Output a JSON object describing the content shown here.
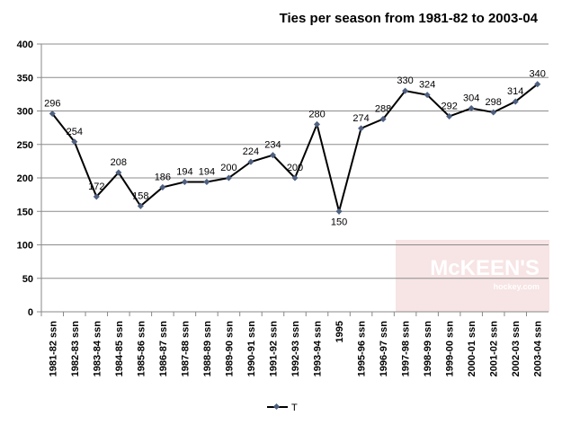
{
  "chart_data": {
    "type": "line",
    "title": "Ties per season from 1981-82 to 2003-04",
    "xlabel": "",
    "ylabel": "",
    "ylim": [
      0,
      400
    ],
    "yticks": [
      0,
      50,
      100,
      150,
      200,
      250,
      300,
      350,
      400
    ],
    "grid": true,
    "legend_position": "bottom",
    "categories": [
      "1981-82 ssn",
      "1982-83 ssn",
      "1983-84 ssn",
      "1984-85 ssn",
      "1985-86 ssn",
      "1986-87 ssn",
      "1987-88 ssn",
      "1988-89 ssn",
      "1989-90 ssn",
      "1990-91 ssn",
      "1991-92 ssn",
      "1992-93 ssn",
      "1993-94 ssn",
      "1995",
      "1995-96 ssn",
      "1996-97 ssn",
      "1997-98 ssn",
      "1998-99 ssn",
      "1999-00 ssn",
      "2000-01 ssn",
      "2001-02 ssn",
      "2002-03 ssn",
      "2003-04 ssn"
    ],
    "series": [
      {
        "name": "T",
        "color": "#000000",
        "marker_color": "#4f6080",
        "values": [
          296,
          254,
          172,
          208,
          158,
          186,
          194,
          194,
          200,
          224,
          234,
          200,
          280,
          150,
          274,
          288,
          330,
          324,
          292,
          304,
          298,
          314,
          340
        ]
      }
    ]
  },
  "watermark": {
    "brand": "McKEEN'S",
    "sub": "hockey.com"
  }
}
